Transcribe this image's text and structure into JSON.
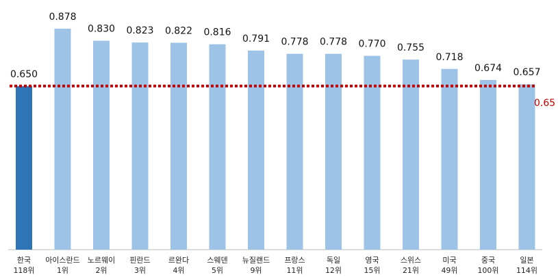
{
  "chart_data": {
    "type": "bar",
    "categories": [
      [
        "한국",
        "118위"
      ],
      [
        "아이스란드",
        "1위"
      ],
      [
        "노르웨이",
        "2위"
      ],
      [
        "핀란드",
        "3위"
      ],
      [
        "르완다",
        "4위"
      ],
      [
        "스웨덴",
        "5위"
      ],
      [
        "뉴질랜드",
        "9위"
      ],
      [
        "프랑스",
        "11위"
      ],
      [
        "독일",
        "12위"
      ],
      [
        "영국",
        "15위"
      ],
      [
        "스위스",
        "21위"
      ],
      [
        "미국",
        "49위"
      ],
      [
        "중국",
        "100위"
      ],
      [
        "일본",
        "114위"
      ]
    ],
    "values": [
      0.65,
      0.878,
      0.83,
      0.823,
      0.822,
      0.816,
      0.791,
      0.778,
      0.778,
      0.77,
      0.755,
      0.718,
      0.674,
      0.657
    ],
    "value_labels": [
      "0.650",
      "0.878",
      "0.830",
      "0.823",
      "0.822",
      "0.816",
      "0.791",
      "0.778",
      "0.778",
      "0.770",
      "0.755",
      "0.718",
      "0.674",
      "0.657"
    ],
    "colors": [
      "#2e75b6",
      "#9dc3e6",
      "#9dc3e6",
      "#9dc3e6",
      "#9dc3e6",
      "#9dc3e6",
      "#9dc3e6",
      "#9dc3e6",
      "#9dc3e6",
      "#9dc3e6",
      "#9dc3e6",
      "#9dc3e6",
      "#9dc3e6",
      "#9dc3e6"
    ],
    "reference_line": {
      "value": 0.65,
      "color": "#c00000"
    },
    "ylim": [
      0,
      1
    ]
  }
}
